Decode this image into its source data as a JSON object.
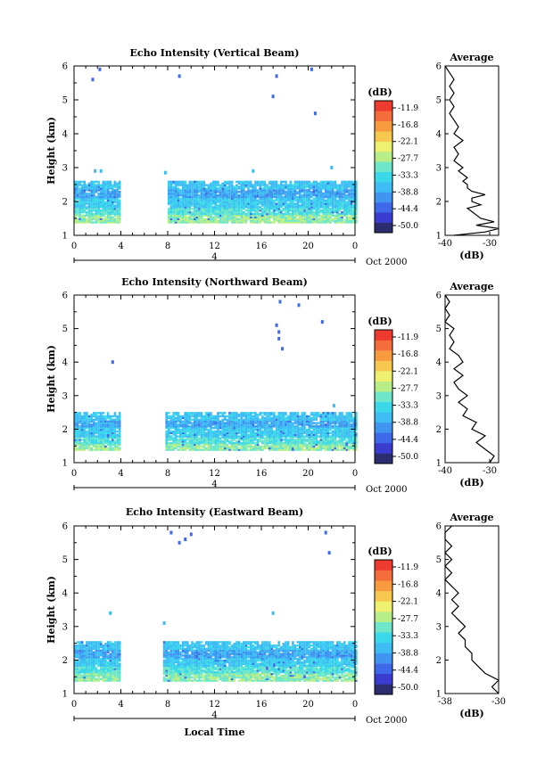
{
  "common": {
    "ylabel": "Height (km)",
    "x_ticks": [
      "0",
      "4",
      "8",
      "12",
      "16",
      "20",
      "0"
    ],
    "date_tick": "4",
    "date_label": "Oct 2000",
    "colorbar_unit": "(dB)",
    "colorbar_ticks": [
      "-11.9",
      "-16.8",
      "-22.1",
      "-27.7",
      "-33.3",
      "-38.8",
      "-44.4",
      "-50.0"
    ],
    "avg_title": "Average",
    "avg_xlabel": "(dB)",
    "xlabel_bottom": "Local Time",
    "colors": [
      "#2b2d6e",
      "#3a3ccf",
      "#3e69e8",
      "#3f95f0",
      "#3ebdf5",
      "#3ad8e8",
      "#6ee6c8",
      "#b8ee88",
      "#eef070",
      "#f6c84e",
      "#f89a3e",
      "#f46d3a",
      "#ee3b2f"
    ]
  },
  "chart_data": [
    {
      "type": "heatmap",
      "title": "Echo Intensity (Vertical Beam)",
      "ylabel": "Height (km)",
      "x_range_hours": [
        0,
        24
      ],
      "ylim": [
        1,
        6
      ],
      "yticks": [
        1,
        2,
        3,
        4,
        5,
        6
      ],
      "gap_hours": [
        4,
        7.9
      ],
      "main_echo_top_km": 2.55,
      "sparse_echoes": [
        [
          2.2,
          5.9
        ],
        [
          1.6,
          5.6
        ],
        [
          9,
          5.7
        ],
        [
          17.3,
          5.7
        ],
        [
          17,
          5.1
        ],
        [
          20.3,
          5.9
        ],
        [
          20.6,
          4.6
        ],
        [
          2.3,
          2.9
        ],
        [
          1.8,
          2.9
        ],
        [
          7.8,
          2.85
        ],
        [
          15.3,
          2.9
        ],
        [
          22,
          3.0
        ]
      ],
      "average_profile": {
        "xlim": [
          -40,
          -28
        ],
        "xticks": [
          -40,
          -30
        ],
        "yticks": [
          1,
          2,
          3,
          4,
          5,
          6
        ],
        "h": [
          1.0,
          1.1,
          1.2,
          1.3,
          1.4,
          1.5,
          1.6,
          1.7,
          1.8,
          1.9,
          2.0,
          2.1,
          2.2,
          2.3,
          2.4,
          2.5,
          2.6,
          2.7,
          2.8,
          2.9,
          3.0,
          3.2,
          3.4,
          3.6,
          3.8,
          4.0,
          4.2,
          4.4,
          4.6,
          4.8,
          5.0,
          5.2,
          5.4,
          5.6,
          5.8,
          6.0
        ],
        "db": [
          -38,
          -31,
          -28,
          -33,
          -29,
          -32,
          -33,
          -34,
          -35,
          -32,
          -34,
          -34,
          -31,
          -34,
          -35,
          -35,
          -36,
          -35,
          -36,
          -37,
          -36,
          -38,
          -37,
          -38,
          -36,
          -38,
          -37,
          -38,
          -39,
          -38,
          -39,
          -38,
          -39,
          -38,
          -39,
          -40
        ]
      }
    },
    {
      "type": "heatmap",
      "title": "Echo Intensity (Northward Beam)",
      "ylabel": "Height (km)",
      "x_range_hours": [
        0,
        24
      ],
      "ylim": [
        1,
        6
      ],
      "yticks": [
        1,
        2,
        3,
        4,
        5,
        6
      ],
      "gap_hours": [
        4,
        7.7
      ],
      "main_echo_top_km": 2.45,
      "sparse_echoes": [
        [
          3.3,
          4.0
        ],
        [
          17.3,
          5.1
        ],
        [
          17.5,
          4.9
        ],
        [
          17.5,
          4.7
        ],
        [
          17.6,
          5.8
        ],
        [
          19.2,
          5.7
        ],
        [
          21.2,
          5.2
        ],
        [
          22.2,
          2.7
        ],
        [
          17.8,
          4.4
        ]
      ],
      "average_profile": {
        "xlim": [
          -40,
          -28
        ],
        "xticks": [
          -40,
          -30
        ],
        "yticks": [
          1,
          2,
          3,
          4,
          5,
          6
        ],
        "h": [
          1.0,
          1.2,
          1.4,
          1.6,
          1.8,
          2.0,
          2.2,
          2.4,
          2.6,
          2.8,
          3.0,
          3.2,
          3.4,
          3.6,
          3.8,
          4.0,
          4.2,
          4.4,
          4.6,
          4.8,
          5.0,
          5.2,
          5.4,
          5.6,
          5.8,
          6.0
        ],
        "db": [
          -30,
          -29,
          -31,
          -33,
          -31,
          -34,
          -33,
          -36,
          -35,
          -37,
          -35,
          -37,
          -38,
          -36,
          -38,
          -36,
          -37,
          -39,
          -38,
          -39,
          -38,
          -40,
          -39,
          -40,
          -39,
          -40
        ]
      }
    },
    {
      "type": "heatmap",
      "title": "Echo Intensity (Eastward Beam)",
      "ylabel": "Height (km)",
      "x_range_hours": [
        0,
        24
      ],
      "ylim": [
        1,
        6
      ],
      "yticks": [
        1,
        2,
        3,
        4,
        5,
        6
      ],
      "gap_hours": [
        4,
        7.6
      ],
      "main_echo_top_km": 2.5,
      "sparse_echoes": [
        [
          3.1,
          3.4
        ],
        [
          8.3,
          5.8
        ],
        [
          9,
          5.5
        ],
        [
          9.5,
          5.6
        ],
        [
          10,
          5.75
        ],
        [
          17,
          3.4
        ],
        [
          21.5,
          5.8
        ],
        [
          21.8,
          5.2
        ],
        [
          7.7,
          3.1
        ]
      ],
      "average_profile": {
        "xlim": [
          -38,
          -30
        ],
        "xticks": [
          -38,
          -30
        ],
        "yticks": [
          1,
          2,
          3,
          4,
          5,
          6
        ],
        "h": [
          1.0,
          1.2,
          1.4,
          1.6,
          1.8,
          2.0,
          2.2,
          2.4,
          2.6,
          2.8,
          3.0,
          3.2,
          3.4,
          3.6,
          3.8,
          4.0,
          4.2,
          4.4,
          4.6,
          4.8,
          5.0,
          5.2,
          5.4,
          5.6,
          5.8,
          6.0
        ],
        "db": [
          -30,
          -31,
          -30,
          -32,
          -33,
          -34,
          -34,
          -35,
          -35,
          -36,
          -35,
          -36,
          -37,
          -36,
          -37,
          -36,
          -37,
          -38,
          -37,
          -38,
          -37,
          -38,
          -37,
          -38,
          -38,
          -37
        ]
      }
    }
  ]
}
